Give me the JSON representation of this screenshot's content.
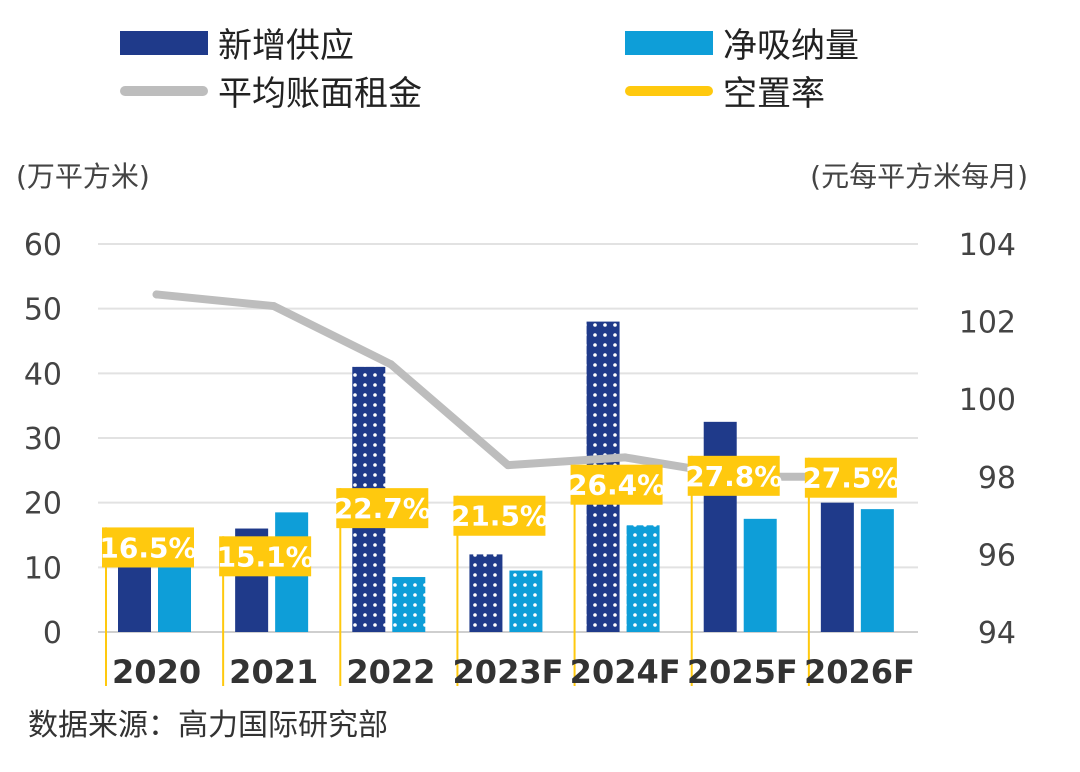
{
  "legend": {
    "new_supply": {
      "label": "新增供应",
      "color": "#1f3a8a"
    },
    "net_absorption": {
      "label": "净吸纳量",
      "color": "#0e9ed8"
    },
    "avg_rent": {
      "label": "平均账面租金",
      "color": "#bdbdbd"
    },
    "vacancy": {
      "label": "空置率",
      "color": "#ffc90e"
    }
  },
  "left_axis_unit": "(万平方米)",
  "right_axis_unit": "(元每平方米每月)",
  "source": "数据来源：高力国际研究部",
  "chart_data": {
    "type": "bar",
    "categories": [
      "2020",
      "2021",
      "2022",
      "2023F",
      "2024F",
      "2025F",
      "2026F"
    ],
    "series": [
      {
        "name": "新增供应",
        "axis": "left",
        "values": [
          10,
          16,
          41,
          12,
          48,
          32.5,
          20
        ],
        "pattern": [
          false,
          false,
          true,
          true,
          true,
          false,
          false
        ]
      },
      {
        "name": "净吸纳量",
        "axis": "left",
        "values": [
          10,
          18.5,
          8.5,
          9.5,
          16.5,
          17.5,
          19
        ],
        "pattern": [
          false,
          false,
          true,
          true,
          true,
          false,
          false
        ]
      },
      {
        "name": "平均账面租金",
        "type": "line",
        "axis": "right",
        "values": [
          102.7,
          102.4,
          100.9,
          98.3,
          98.5,
          98,
          98
        ]
      },
      {
        "name": "空置率",
        "type": "label",
        "values": [
          16.5,
          15.1,
          22.7,
          21.5,
          26.4,
          27.8,
          27.5
        ],
        "labels": [
          "16.5%",
          "15.1%",
          "22.7%",
          "21.5%",
          "26.4%",
          "27.8%",
          "27.5%"
        ]
      }
    ],
    "left_axis": {
      "ylim": [
        0,
        60
      ],
      "ticks": [
        "0",
        "10",
        "20",
        "30",
        "40",
        "50",
        "60"
      ]
    },
    "right_axis": {
      "ylim": [
        94,
        104
      ],
      "ticks": [
        "94",
        "96",
        "98",
        "100",
        "102",
        "104"
      ]
    },
    "grid": true
  }
}
